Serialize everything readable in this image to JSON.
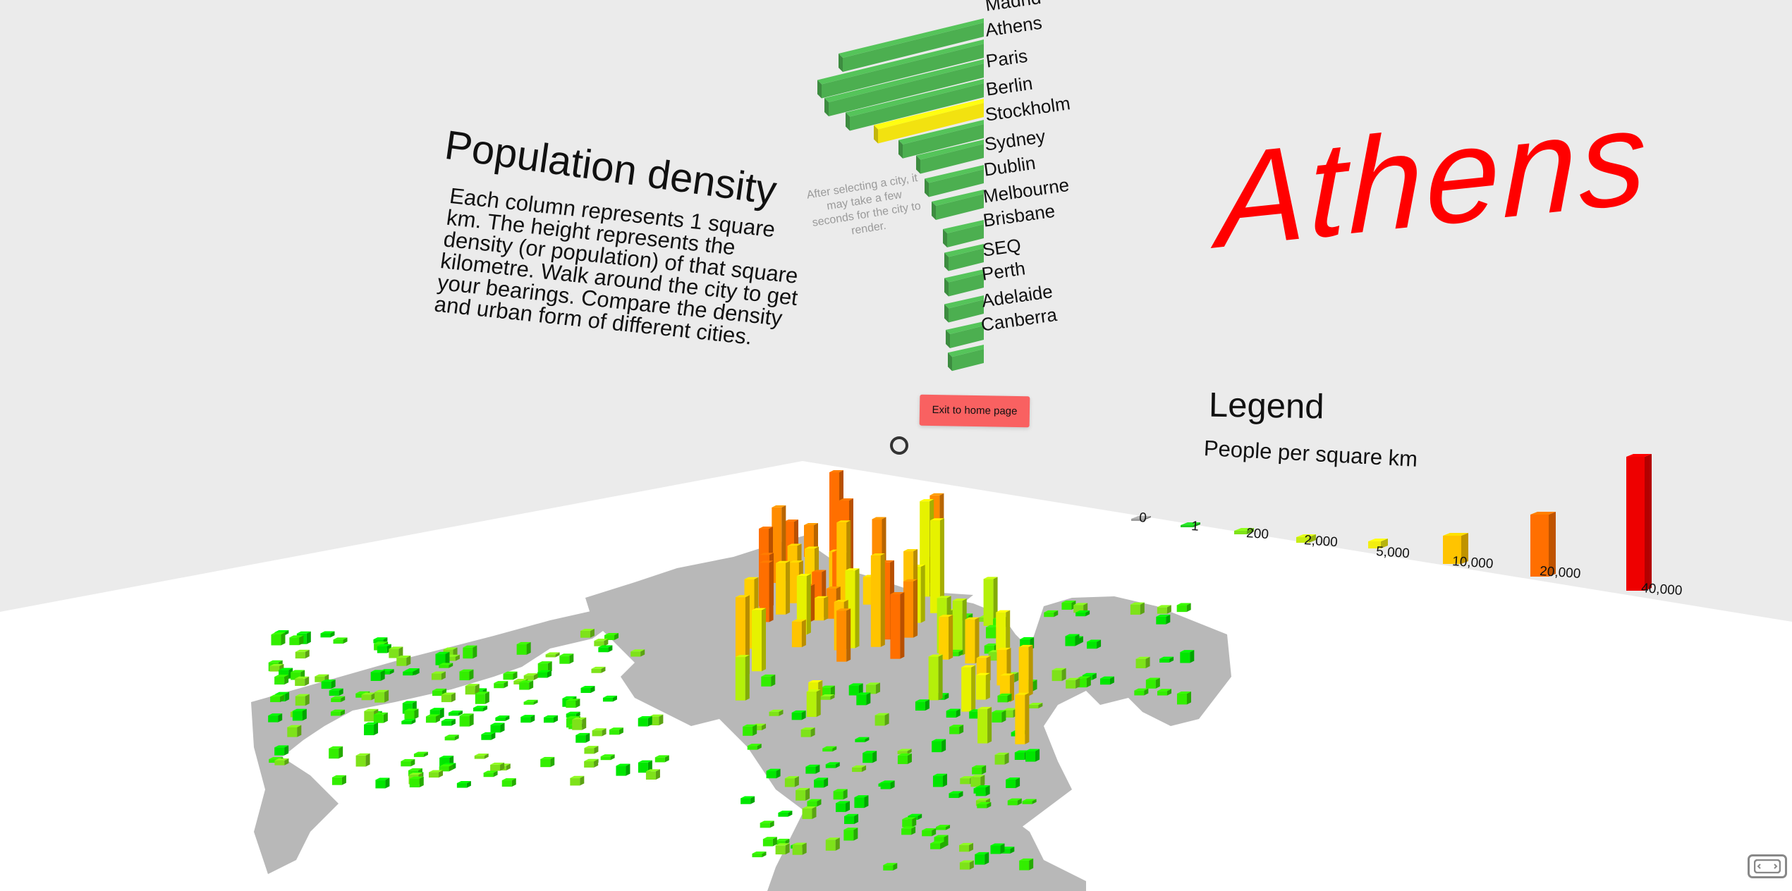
{
  "intro": {
    "title": "Population density",
    "body": "Each column represents 1 square km. The height represents the density (or population) of that square kilometre. Walk around the city to get your bearings. Compare the density and urban form of different cities."
  },
  "hint": "After selecting a city, it may take a few seconds for the city to render.",
  "selected_city": "Athens",
  "city_menu": {
    "cities": [
      "Madrid",
      "Athens",
      "Paris",
      "Berlin",
      "Stockholm",
      "Sydney",
      "Dublin",
      "Melbourne",
      "Brisbane",
      "SEQ",
      "Perth",
      "Adelaide",
      "Canberra"
    ],
    "selected": "Athens"
  },
  "exit_button": "Exit to home page",
  "legend": {
    "title": "Legend",
    "subtitle": "People per square km",
    "items": [
      {
        "label": "0",
        "color": "#9e9e9e"
      },
      {
        "label": "1",
        "color": "#22cc22"
      },
      {
        "label": "200",
        "color": "#7ee21a"
      },
      {
        "label": "2,000",
        "color": "#c6ec12"
      },
      {
        "label": "5,000",
        "color": "#f2ee10"
      },
      {
        "label": "10,000",
        "color": "#ffc400"
      },
      {
        "label": "20,000",
        "color": "#ff6f00"
      },
      {
        "label": "40,000",
        "color": "#ee0000"
      }
    ]
  },
  "colors": {
    "wall": "#ebebeb",
    "floor": "#ffffff",
    "bar": "#4caf50",
    "bar_selected": "#f2e210",
    "city_title": "#ff0000",
    "exit_button": "#f96161",
    "land": "#b8b8b8"
  },
  "icons": {
    "vr": "vr-headset-icon",
    "cursor": "gaze-cursor-icon"
  }
}
